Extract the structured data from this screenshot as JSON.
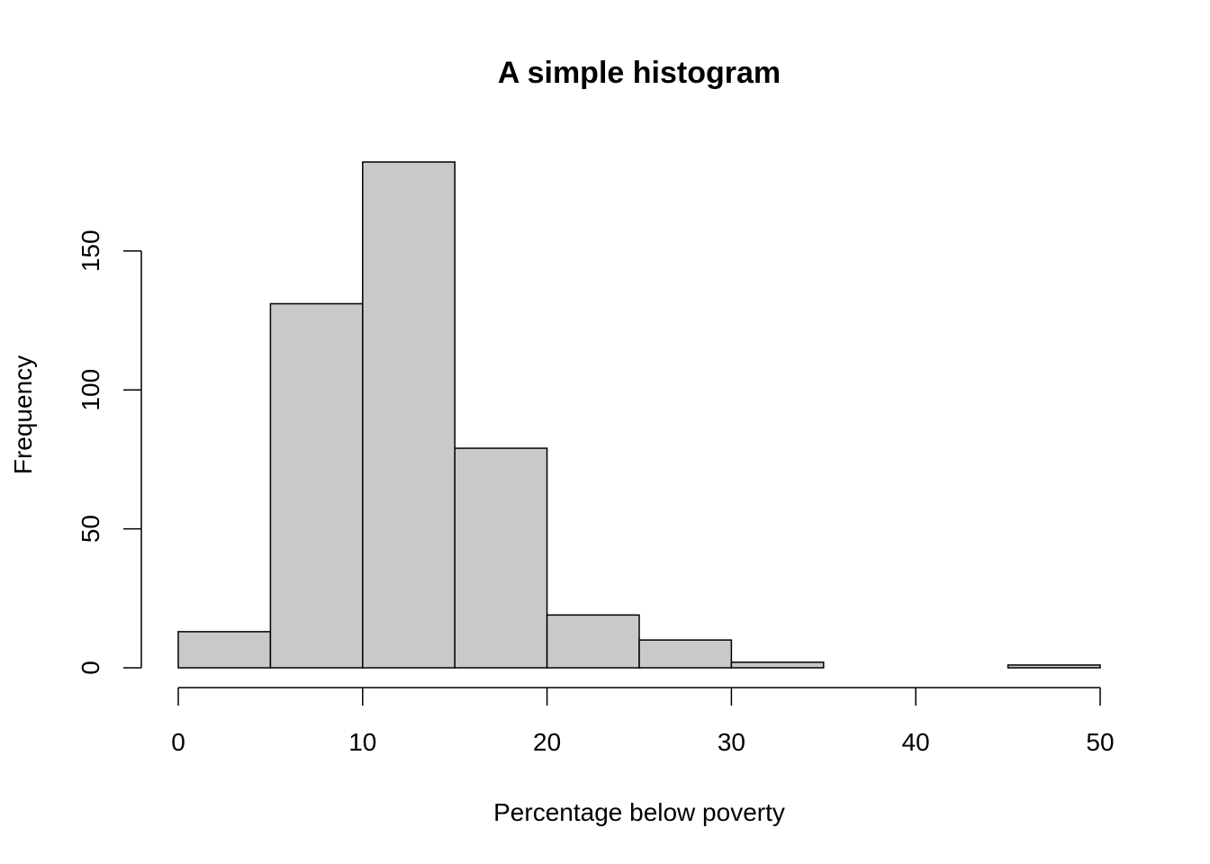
{
  "chart_data": {
    "type": "histogram",
    "title": "A simple histogram",
    "xlabel": "Percentage below poverty",
    "ylabel": "Frequency",
    "bins": [
      0,
      5,
      10,
      15,
      20,
      25,
      30,
      35,
      40,
      45,
      50
    ],
    "counts": [
      13,
      131,
      182,
      79,
      19,
      10,
      2,
      0,
      0,
      1
    ],
    "color": "#c9c9c9",
    "xlim": [
      0,
      50
    ],
    "xticks": [
      0,
      10,
      20,
      30,
      40,
      50
    ],
    "ylim": [
      0,
      182
    ],
    "yticks": [
      0,
      50,
      100,
      150
    ]
  }
}
